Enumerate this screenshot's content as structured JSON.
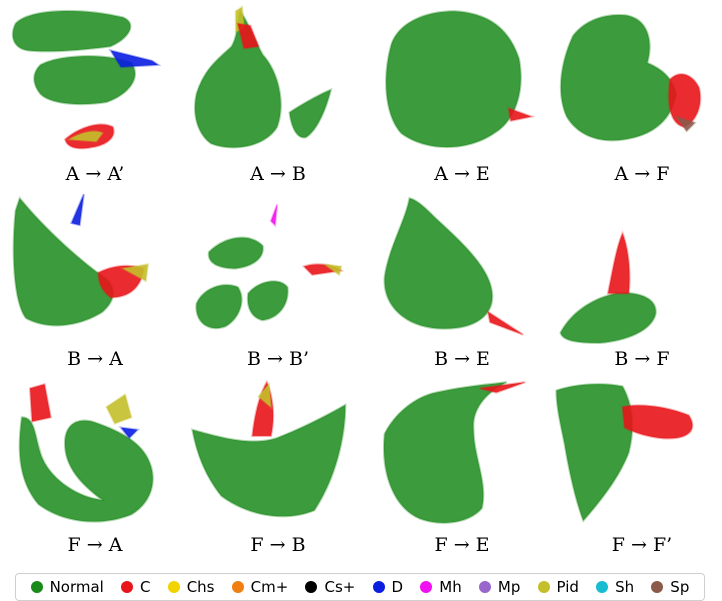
{
  "chart_data": {
    "type": "scatter",
    "panels": [
      {
        "label": "A → A’",
        "dominant": "Normal",
        "shape": "split-halves",
        "accent": [
          "D",
          "C",
          "Pid"
        ]
      },
      {
        "label": "A → B",
        "dominant": "Normal",
        "shape": "round-with-tail",
        "accent": [
          "Pid",
          "C"
        ]
      },
      {
        "label": "A → E",
        "dominant": "Normal",
        "shape": "large-blob",
        "accent": [
          "C"
        ]
      },
      {
        "label": "A → F",
        "dominant": "Normal",
        "shape": "blob-with-cluster",
        "accent": [
          "C",
          "Sp"
        ]
      },
      {
        "label": "B → A",
        "dominant": "Normal",
        "shape": "triangle-with-spike",
        "accent": [
          "C",
          "Pid",
          "D"
        ]
      },
      {
        "label": "B → B’",
        "dominant": "Normal",
        "shape": "fragments",
        "accent": [
          "C",
          "Pid",
          "Mh"
        ]
      },
      {
        "label": "B → E",
        "dominant": "Normal",
        "shape": "teardrop",
        "accent": [
          "C"
        ]
      },
      {
        "label": "B → F",
        "dominant": "Normal",
        "shape": "small-with-spike",
        "accent": [
          "C"
        ]
      },
      {
        "label": "F → A",
        "dominant": "Normal",
        "shape": "crescent",
        "accent": [
          "C",
          "Pid",
          "D"
        ]
      },
      {
        "label": "F → B",
        "dominant": "Normal",
        "shape": "fan",
        "accent": [
          "C",
          "Pid"
        ]
      },
      {
        "label": "F → E",
        "dominant": "Normal",
        "shape": "folded-sheet",
        "accent": [
          "C"
        ]
      },
      {
        "label": "F → F’",
        "dominant": "Normal",
        "shape": "wedge-with-cluster",
        "accent": [
          "C"
        ]
      }
    ],
    "legend": [
      {
        "name": "Normal",
        "color": "#1a8a1a"
      },
      {
        "name": "C",
        "color": "#e8141a"
      },
      {
        "name": "Chs",
        "color": "#f2d200"
      },
      {
        "name": "Cm+",
        "color": "#f07f10"
      },
      {
        "name": "Cs+",
        "color": "#000000"
      },
      {
        "name": "D",
        "color": "#0a1ee0"
      },
      {
        "name": "Mh",
        "color": "#f010f0"
      },
      {
        "name": "Mp",
        "color": "#9966cc"
      },
      {
        "name": "Pid",
        "color": "#c4bf2a"
      },
      {
        "name": "Sh",
        "color": "#18bcd0"
      },
      {
        "name": "Sp",
        "color": "#8c5a4a"
      }
    ],
    "legend_placement": "bottom"
  }
}
